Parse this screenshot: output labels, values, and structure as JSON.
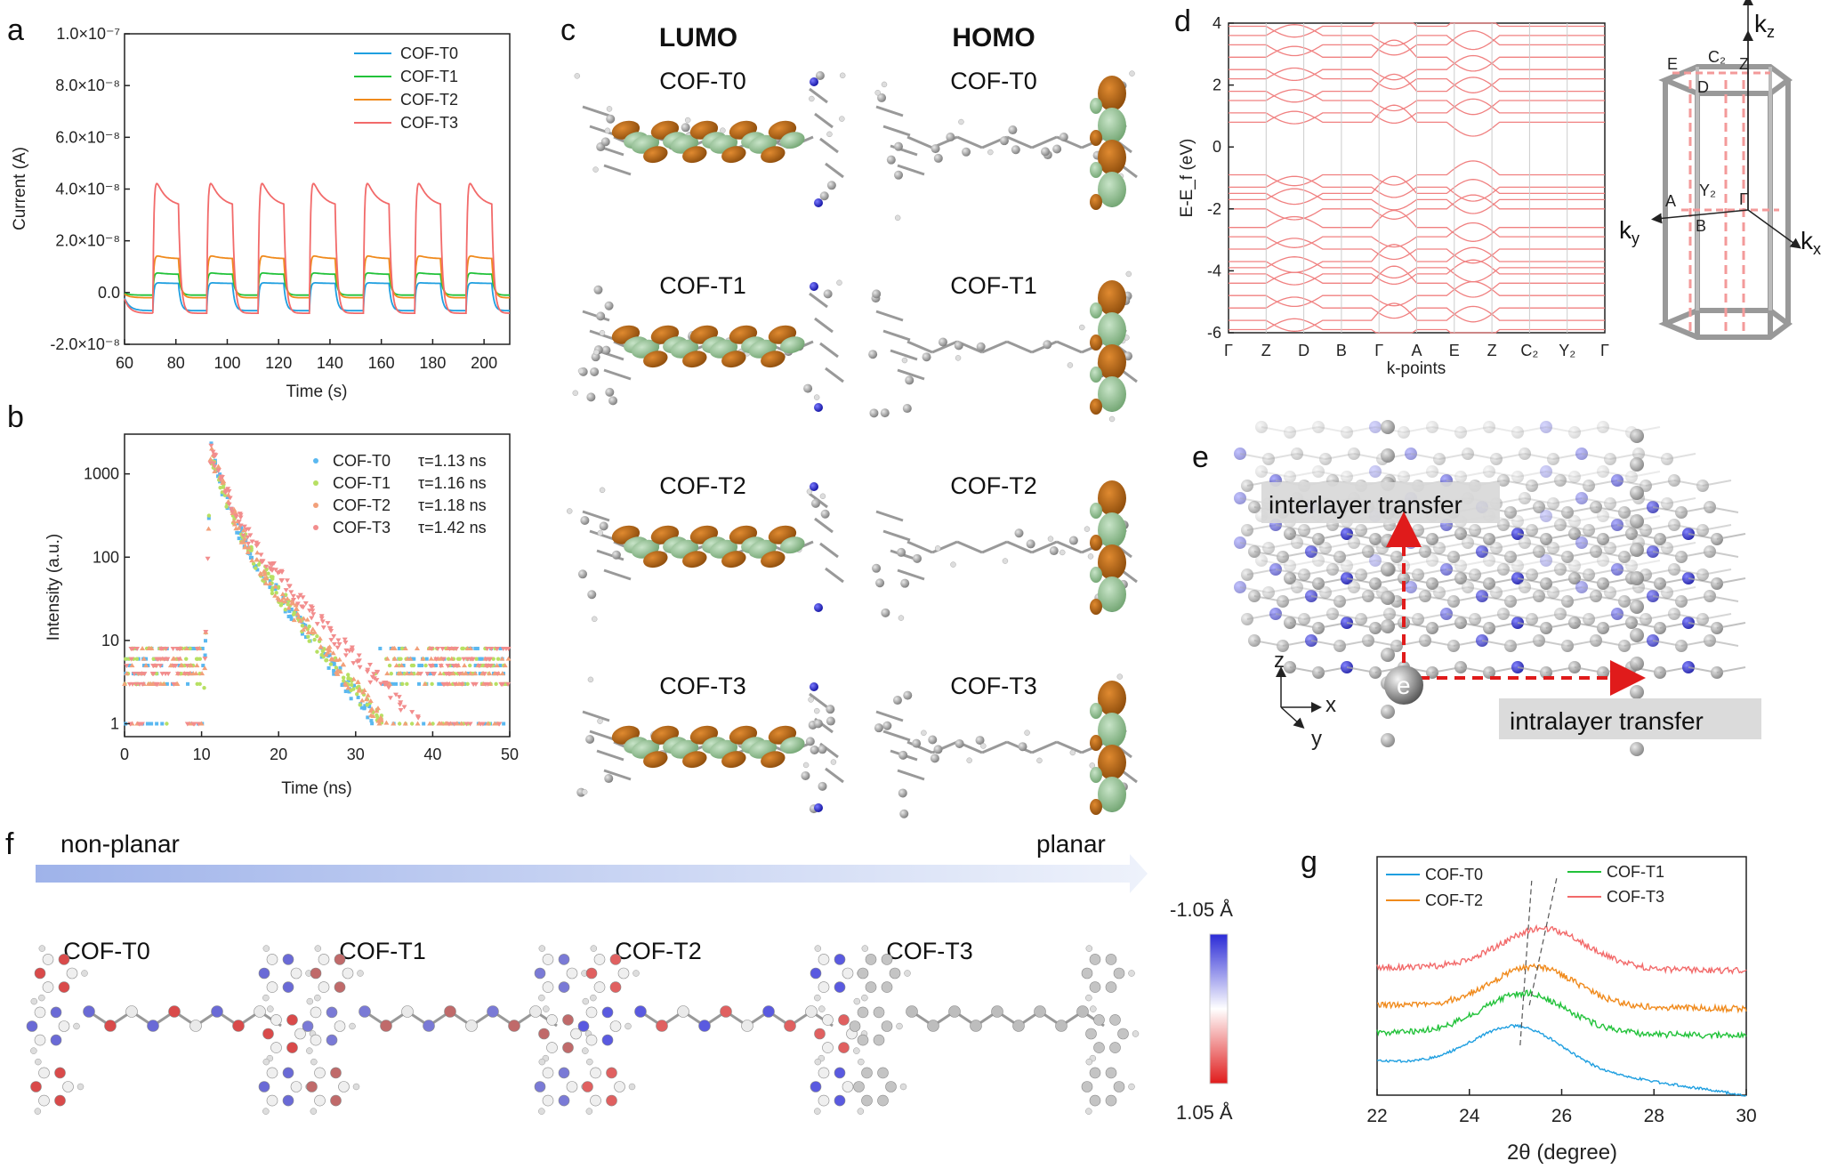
{
  "panel_labels": {
    "a": "a",
    "b": "b",
    "c": "c",
    "d": "d",
    "e": "e",
    "f": "f",
    "g": "g"
  },
  "series_colors": {
    "COF-T0": "#1f9fe0",
    "COF-T1": "#22c23a",
    "COF-T2": "#f08a1c",
    "COF-T3": "#f26a6a"
  },
  "chart_data": [
    {
      "id": "a",
      "type": "line",
      "xlabel": "Time (s)",
      "ylabel": "Current (A)",
      "xlim": [
        60,
        210
      ],
      "ylim": [
        -2e-08,
        1e-07
      ],
      "xticks": [
        "60",
        "80",
        "100",
        "120",
        "140",
        "160",
        "180",
        "200"
      ],
      "yticks": [
        "-2.0×10⁻⁸",
        "0.0",
        "2.0×10⁻⁸",
        "4.0×10⁻⁸",
        "6.0×10⁻⁸",
        "8.0×10⁻⁸",
        "1.0×10⁻⁷"
      ],
      "light_on_start_s": [
        71,
        92,
        112,
        132,
        153,
        173,
        193
      ],
      "on_duration_s": 10,
      "series": [
        {
          "name": "COF-T0",
          "dark": -7e-09,
          "on_peak": 4e-09,
          "on_end": 3.5e-09
        },
        {
          "name": "COF-T1",
          "dark": -1e-09,
          "on_peak": 8e-09,
          "on_end": 7e-09
        },
        {
          "name": "COF-T2",
          "dark": -2e-09,
          "on_peak": 1.5e-08,
          "on_end": 1.3e-08
        },
        {
          "name": "COF-T3",
          "dark": -8e-09,
          "on_peak": 4.8e-08,
          "on_end": 3.3e-08
        }
      ],
      "legend": [
        "COF-T0",
        "COF-T1",
        "COF-T2",
        "COF-T3"
      ]
    },
    {
      "id": "b",
      "type": "scatter",
      "xlabel": "Time (ns)",
      "ylabel": "Intensity (a.u.)",
      "xlim": [
        0,
        50
      ],
      "ylim": [
        0.7,
        3000
      ],
      "yscale": "log",
      "xticks": [
        "0",
        "10",
        "20",
        "30",
        "40",
        "50"
      ],
      "yticks": [
        "1",
        "10",
        "100",
        "1000"
      ],
      "peak_time_ns": 11.2,
      "peak_counts": 2000,
      "series": [
        {
          "name": "COF-T0",
          "tau_label": "τ=1.13 ns",
          "tau_ns": 1.13
        },
        {
          "name": "COF-T1",
          "tau_label": "τ=1.16 ns",
          "tau_ns": 1.16
        },
        {
          "name": "COF-T2",
          "tau_label": "τ=1.18 ns",
          "tau_ns": 1.18
        },
        {
          "name": "COF-T3",
          "tau_label": "τ=1.42 ns",
          "tau_ns": 1.42
        }
      ]
    },
    {
      "id": "d",
      "type": "line",
      "xlabel": "k-points",
      "ylabel": "E-E_f (eV)",
      "ylim": [
        -6,
        4
      ],
      "yticks": [
        "4",
        "2",
        "0",
        "-2",
        "-4",
        "-6"
      ],
      "kpoints": [
        "Γ",
        "Z",
        "D",
        "B",
        "Γ",
        "A",
        "E",
        "Z",
        "C₂",
        "Y₂",
        "Γ"
      ],
      "band_color": "#f08080"
    },
    {
      "id": "g",
      "type": "line",
      "xlabel": "2θ  (degree)",
      "xlim": [
        22,
        30
      ],
      "xticks": [
        "22",
        "24",
        "26",
        "28",
        "30"
      ],
      "peak_positions_2theta": [
        25.0,
        25.2,
        25.4,
        25.6
      ],
      "series": [
        {
          "name": "COF-T0",
          "peak": 25.0,
          "offset": 0
        },
        {
          "name": "COF-T1",
          "peak": 25.2,
          "offset": 1
        },
        {
          "name": "COF-T2",
          "peak": 25.4,
          "offset": 2
        },
        {
          "name": "COF-T3",
          "peak": 25.6,
          "offset": 3
        }
      ],
      "legend": [
        "COF-T0",
        "COF-T2",
        "COF-T1",
        "COF-T3"
      ]
    }
  ],
  "panel_c": {
    "lumo_header": "LUMO",
    "homo_header": "HOMO",
    "rows": [
      "COF-T0",
      "COF-T1",
      "COF-T2",
      "COF-T3"
    ]
  },
  "panel_d_bz": {
    "labels": [
      "k",
      "k",
      "k",
      "E",
      "C₂",
      "Z",
      "D",
      "Y₂",
      "A",
      "B",
      "Γ"
    ],
    "axes": [
      "z",
      "y",
      "x"
    ]
  },
  "panel_e": {
    "interlayer": "interlayer transfer",
    "intralayer": "intralayer transfer",
    "electron": "e",
    "axes": [
      "z",
      "x",
      "y"
    ]
  },
  "panel_f": {
    "left": "non-planar",
    "right": "planar",
    "molecules": [
      "COF-T0",
      "COF-T1",
      "COF-T2",
      "COF-T3"
    ],
    "cbar_top": "-1.05 Å",
    "cbar_bottom": "1.05 Å"
  }
}
